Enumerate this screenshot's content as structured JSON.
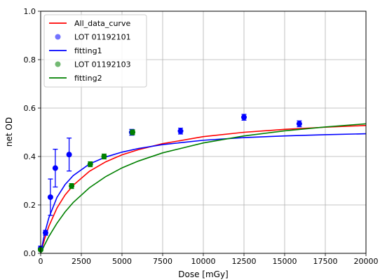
{
  "chart_data": {
    "type": "scatter",
    "xlabel": "Dose [mGy]",
    "ylabel": "net OD",
    "xlim": [
      0,
      20000
    ],
    "ylim": [
      0.0,
      1.0
    ],
    "xticks": [
      0,
      2500,
      5000,
      7500,
      10000,
      12500,
      15000,
      17500,
      20000
    ],
    "xtick_labels": [
      "0",
      "2500",
      "5000",
      "7500",
      "10000",
      "12500",
      "15000",
      "17500",
      "20000"
    ],
    "yticks": [
      0.0,
      0.2,
      0.4,
      0.6,
      0.8,
      1.0
    ],
    "ytick_labels": [
      "0.0",
      "0.2",
      "0.4",
      "0.6",
      "0.8",
      "1.0"
    ],
    "grid": true,
    "legend_position": "top-left",
    "legend": [
      {
        "label": "All_data_curve",
        "kind": "line",
        "color": "#ff0000"
      },
      {
        "label": "LOT 01192101",
        "kind": "marker",
        "color": "#0000ff"
      },
      {
        "label": "fitting1",
        "kind": "line",
        "color": "#0000ff"
      },
      {
        "label": "LOT 01192103",
        "kind": "marker",
        "color": "#008000"
      },
      {
        "label": "fitting2",
        "kind": "line",
        "color": "#008000"
      }
    ],
    "series": [
      {
        "name": "LOT 01192101",
        "kind": "points",
        "color": "#0000ff",
        "x": [
          0,
          300,
          600,
          900,
          1750,
          5600,
          8600,
          12500,
          15900
        ],
        "y": [
          0.02,
          0.085,
          0.232,
          0.352,
          0.408,
          0.5,
          0.505,
          0.562,
          0.535
        ],
        "err": [
          0.01,
          0.01,
          0.075,
          0.078,
          0.068,
          0.012,
          0.012,
          0.012,
          0.012
        ]
      },
      {
        "name": "LOT 01192103",
        "kind": "points",
        "color": "#008000",
        "x": [
          0,
          1900,
          3050,
          3900,
          5650
        ],
        "y": [
          0.015,
          0.278,
          0.368,
          0.4,
          0.5
        ],
        "err": [
          0.005,
          0.01,
          0.01,
          0.01,
          0.01
        ]
      },
      {
        "name": "All_data_curve",
        "kind": "line",
        "color": "#ff0000",
        "x": [
          0,
          250,
          500,
          1000,
          1500,
          2000,
          3000,
          4000,
          5000,
          6000,
          7500,
          10000,
          12500,
          15000,
          17500,
          20000
        ],
        "y": [
          0.0,
          0.061,
          0.111,
          0.187,
          0.241,
          0.281,
          0.339,
          0.378,
          0.407,
          0.428,
          0.453,
          0.482,
          0.5,
          0.512,
          0.521,
          0.528
        ]
      },
      {
        "name": "fitting1",
        "kind": "line",
        "color": "#0000ff",
        "x": [
          0,
          250,
          500,
          1000,
          1500,
          2000,
          3000,
          4000,
          5000,
          6000,
          7500,
          10000,
          12500,
          15000,
          17500,
          20000
        ],
        "y": [
          0.0,
          0.084,
          0.146,
          0.231,
          0.284,
          0.321,
          0.369,
          0.398,
          0.418,
          0.433,
          0.449,
          0.467,
          0.478,
          0.485,
          0.49,
          0.494
        ]
      },
      {
        "name": "fitting2",
        "kind": "line",
        "color": "#008000",
        "x": [
          0,
          250,
          500,
          1000,
          1500,
          2000,
          3000,
          4000,
          5000,
          6000,
          7500,
          10000,
          12500,
          15000,
          17500,
          20000
        ],
        "y": [
          0.0,
          0.036,
          0.069,
          0.124,
          0.171,
          0.21,
          0.271,
          0.317,
          0.353,
          0.381,
          0.415,
          0.456,
          0.485,
          0.506,
          0.522,
          0.535
        ]
      }
    ]
  }
}
